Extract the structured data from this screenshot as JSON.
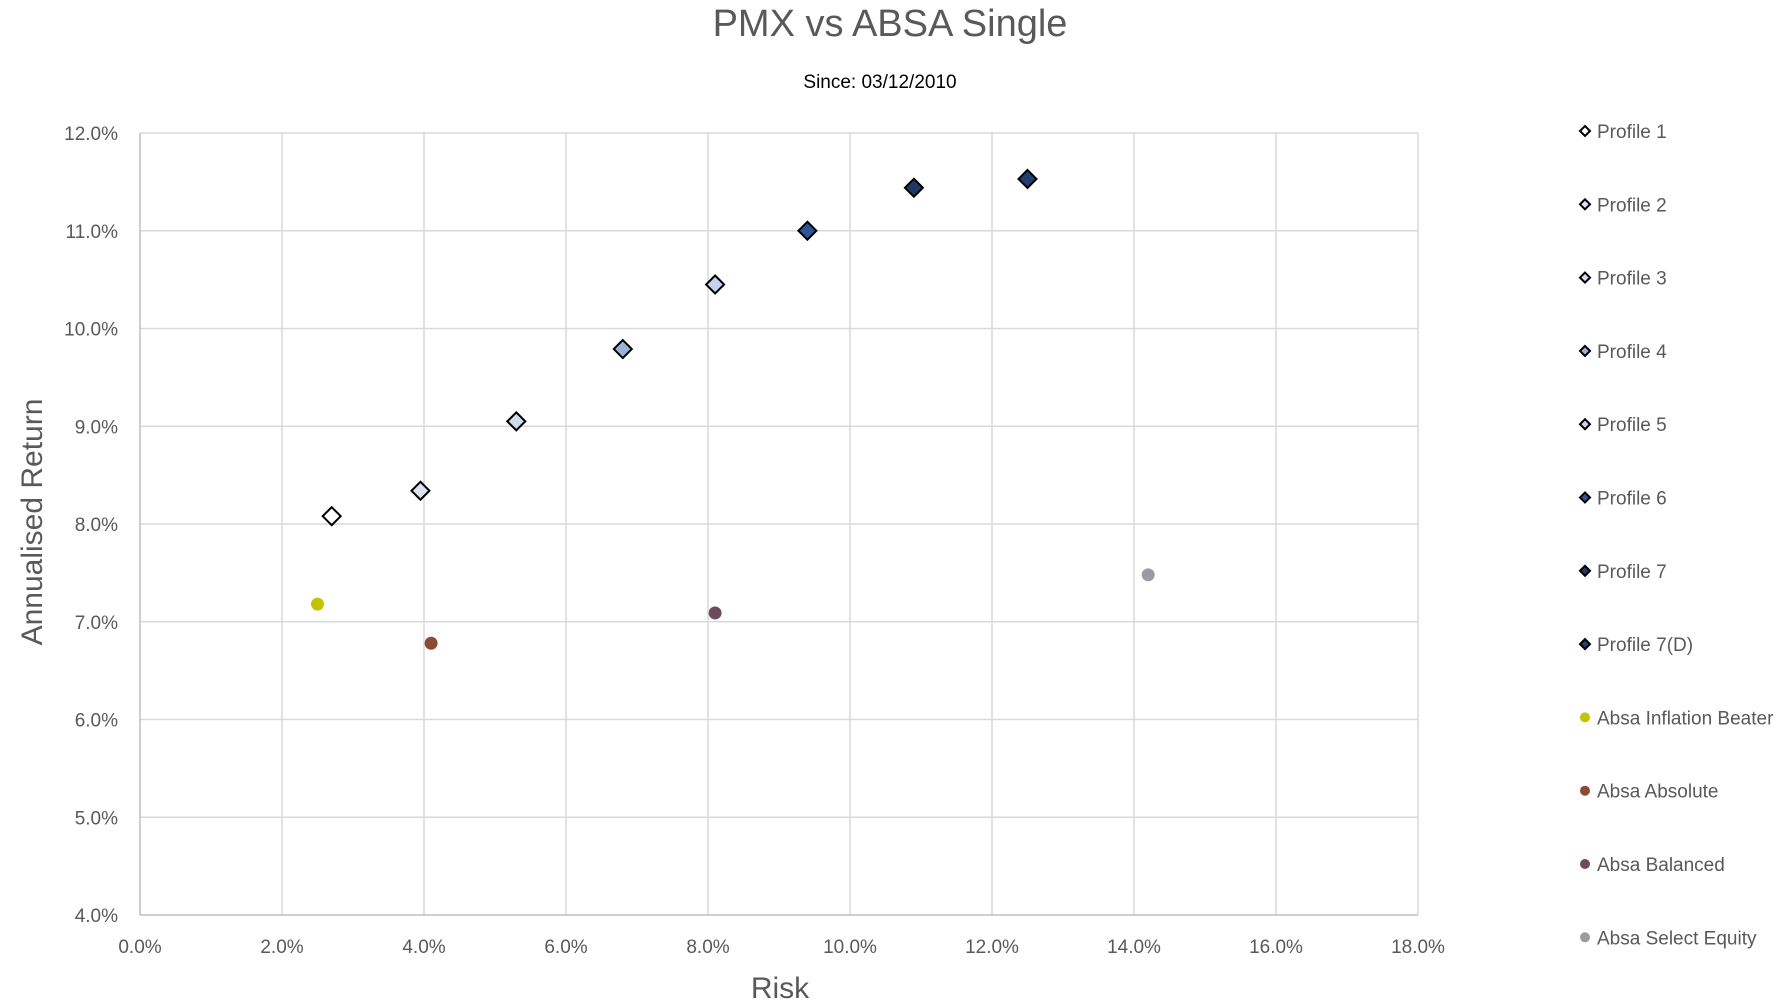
{
  "chart_data": {
    "type": "scatter",
    "title": "PMX vs ABSA Single",
    "subtitle": "Since: 03/12/2010",
    "xlabel": "Risk",
    "ylabel": "Annualised Return",
    "xlim": [
      0.0,
      18.0
    ],
    "ylim": [
      4.0,
      12.0
    ],
    "x_ticks": [
      "0.0%",
      "2.0%",
      "4.0%",
      "6.0%",
      "8.0%",
      "10.0%",
      "12.0%",
      "14.0%",
      "16.0%",
      "18.0%"
    ],
    "y_ticks": [
      "4.0%",
      "5.0%",
      "6.0%",
      "7.0%",
      "8.0%",
      "9.0%",
      "10.0%",
      "11.0%",
      "12.0%"
    ],
    "grid": true,
    "legend_position": "right",
    "series": [
      {
        "name": "Profile 1",
        "marker": "diamond",
        "color": "#ffffff",
        "points": [
          {
            "x": 2.7,
            "y": 8.08
          }
        ]
      },
      {
        "name": "Profile 2",
        "marker": "diamond",
        "color": "#dbe3f1",
        "points": [
          {
            "x": 3.95,
            "y": 8.34
          }
        ]
      },
      {
        "name": "Profile 3",
        "marker": "diamond",
        "color": "#cfdcee",
        "points": [
          {
            "x": 5.3,
            "y": 9.05
          }
        ]
      },
      {
        "name": "Profile 4",
        "marker": "diamond",
        "color": "#9cb3d8",
        "points": [
          {
            "x": 6.8,
            "y": 9.79
          }
        ]
      },
      {
        "name": "Profile 5",
        "marker": "diamond",
        "color": "#c4d4ee",
        "points": [
          {
            "x": 8.1,
            "y": 10.45
          }
        ]
      },
      {
        "name": "Profile 6",
        "marker": "diamond",
        "color": "#2f5597",
        "points": [
          {
            "x": 9.4,
            "y": 11.0
          }
        ]
      },
      {
        "name": "Profile 7",
        "marker": "diamond",
        "color": "#1f3864",
        "points": [
          {
            "x": 10.9,
            "y": 11.44
          }
        ]
      },
      {
        "name": "Profile 7(D)",
        "marker": "diamond",
        "color": "#203f73",
        "points": [
          {
            "x": 12.5,
            "y": 11.53
          }
        ]
      },
      {
        "name": "Absa Inflation Beater",
        "marker": "circle",
        "color": "#c3c400",
        "points": [
          {
            "x": 2.5,
            "y": 7.18
          }
        ]
      },
      {
        "name": "Absa Absolute",
        "marker": "circle",
        "color": "#8b4a33",
        "points": [
          {
            "x": 4.1,
            "y": 6.78
          }
        ]
      },
      {
        "name": "Absa Balanced",
        "marker": "circle",
        "color": "#6e4a5e",
        "points": [
          {
            "x": 8.1,
            "y": 7.09
          }
        ]
      },
      {
        "name": "Absa Select Equity",
        "marker": "circle",
        "color": "#9b9ba2",
        "points": [
          {
            "x": 14.2,
            "y": 7.48
          }
        ]
      }
    ]
  }
}
